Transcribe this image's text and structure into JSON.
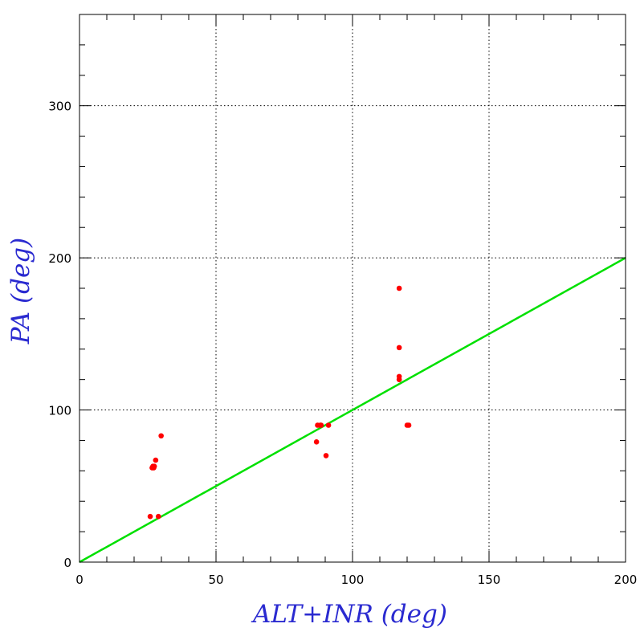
{
  "chart_data": {
    "type": "scatter",
    "xlabel": "ALT+INR (deg)",
    "ylabel": "PA (deg)",
    "xlim": [
      0,
      200
    ],
    "ylim": [
      0,
      360
    ],
    "x_ticks": [
      0,
      50,
      100,
      150,
      200
    ],
    "y_ticks": [
      0,
      100,
      200,
      300
    ],
    "x_tick_labels": [
      "0",
      "50",
      "100",
      "150",
      "200"
    ],
    "y_tick_labels": [
      "0",
      "100",
      "200",
      "300"
    ],
    "grid": true,
    "series": [
      {
        "type": "scatter",
        "color": "#ff0000",
        "points": [
          [
            25.9,
            30
          ],
          [
            28.9,
            30
          ],
          [
            29.9,
            83
          ],
          [
            27.9,
            67
          ],
          [
            26.9,
            63
          ],
          [
            27.4,
            63
          ],
          [
            26.6,
            62
          ],
          [
            27.2,
            62
          ],
          [
            86.8,
            79
          ],
          [
            87.2,
            90
          ],
          [
            88.2,
            90
          ],
          [
            88.5,
            90
          ],
          [
            91.2,
            90
          ],
          [
            90.3,
            70
          ],
          [
            117.1,
            180
          ],
          [
            117.1,
            141
          ],
          [
            117.1,
            122
          ],
          [
            117.1,
            120
          ],
          [
            120.0,
            90
          ],
          [
            120.6,
            90
          ]
        ]
      },
      {
        "type": "line",
        "color": "#00e000",
        "points": [
          [
            0,
            0
          ],
          [
            200,
            200
          ]
        ]
      }
    ],
    "colors": {
      "axis_title": "#2a2ad0",
      "frame": "#000000",
      "grid": "#000000"
    }
  }
}
